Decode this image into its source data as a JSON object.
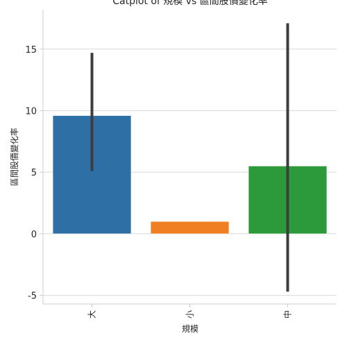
{
  "chart_data": {
    "type": "bar",
    "title": "Catplot of 規模 vs 區間股價變化率",
    "xlabel": "規模",
    "ylabel": "區間股價變化率",
    "categories": [
      "大",
      "小",
      "中"
    ],
    "values": [
      9.6,
      1.0,
      5.5
    ],
    "error_bars": [
      {
        "low": 5.1,
        "high": 14.7
      },
      {
        "low": 1.0,
        "high": 1.0
      },
      {
        "low": -4.7,
        "high": 17.1
      }
    ],
    "colors": [
      "#2e6fa6",
      "#ef7f22",
      "#2c9a3a"
    ],
    "ylim": [
      -5.7,
      18.2
    ],
    "yticks": [
      -5,
      0,
      5,
      10,
      15
    ],
    "grid": "horizontal"
  }
}
